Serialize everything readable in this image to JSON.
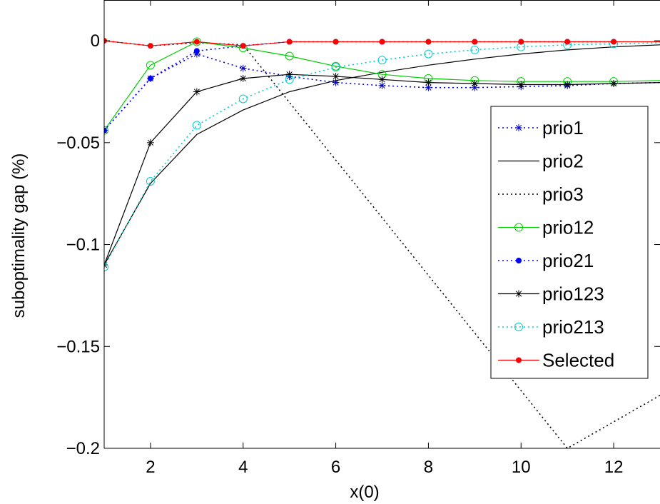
{
  "chart_data": {
    "type": "line",
    "title": "",
    "xlabel": "x(0)",
    "ylabel": "suboptimality gap (%)",
    "xlim": [
      1,
      13
    ],
    "ylim": [
      -0.2,
      0.02
    ],
    "xticks": [
      2,
      4,
      6,
      8,
      10,
      12
    ],
    "yticks": [
      0,
      -0.05,
      -0.1,
      -0.15,
      -0.2
    ],
    "xtick_labels": [
      "2",
      "4",
      "6",
      "8",
      "10",
      "12"
    ],
    "ytick_labels": [
      "0",
      "−0.05",
      "−0.1",
      "−0.15",
      "−0.2"
    ],
    "grid": false,
    "legend_position": "right",
    "series": [
      {
        "name": "prio1",
        "color": "#0000cc",
        "line_style": "dotted",
        "marker": "star",
        "x": [
          1,
          2,
          3,
          4,
          5,
          6,
          7,
          8,
          9,
          10,
          11,
          12,
          13
        ],
        "y": [
          -0.044,
          -0.0185,
          -0.0065,
          -0.0135,
          -0.0175,
          -0.0205,
          -0.022,
          -0.023,
          -0.023,
          -0.0225,
          -0.022,
          -0.021,
          -0.0205
        ]
      },
      {
        "name": "prio2",
        "color": "#000000",
        "line_style": "solid",
        "marker": "none",
        "x": [
          1,
          2,
          3,
          4,
          5,
          6,
          7,
          8,
          9,
          10,
          11,
          12,
          13
        ],
        "y": [
          -0.11,
          -0.07,
          -0.046,
          -0.034,
          -0.025,
          -0.0195,
          -0.0155,
          -0.012,
          -0.009,
          -0.0065,
          -0.0045,
          -0.003,
          -0.002
        ]
      },
      {
        "name": "prio3",
        "color": "#000000",
        "line_style": "dotted",
        "marker": "none",
        "x": [
          1,
          2,
          3,
          4,
          11,
          13
        ],
        "y": [
          0,
          -0.0025,
          -0.001,
          -0.002,
          -0.2,
          -0.174
        ]
      },
      {
        "name": "prio12",
        "color": "#00cc00",
        "line_style": "solid",
        "marker": "circle-open",
        "x": [
          1,
          2,
          3,
          4,
          5,
          6,
          7,
          8,
          9,
          10,
          11,
          12,
          13
        ],
        "y": [
          -0.044,
          -0.012,
          -0.0005,
          -0.0035,
          -0.0075,
          -0.0125,
          -0.0165,
          -0.0185,
          -0.0195,
          -0.02,
          -0.02,
          -0.02,
          -0.0195
        ]
      },
      {
        "name": "prio21",
        "color": "#0000ff",
        "line_style": "dotted",
        "marker": "dot",
        "x": [
          1,
          2,
          3,
          4,
          5,
          6,
          7,
          8,
          9,
          10,
          11,
          12
        ],
        "y": [
          -0.044,
          -0.0185,
          -0.005,
          -0.0025,
          -0.0005,
          -0.0005,
          -0.0005,
          -0.0005,
          -0.0005,
          -0.0005,
          -0.0005,
          -0.0005
        ]
      },
      {
        "name": "prio123",
        "color": "#000000",
        "line_style": "solid",
        "marker": "star",
        "x": [
          1,
          2,
          3,
          4,
          5,
          6,
          7,
          8,
          9,
          10,
          11,
          12,
          13
        ],
        "y": [
          -0.11,
          -0.05,
          -0.025,
          -0.0185,
          -0.0165,
          -0.0175,
          -0.019,
          -0.0205,
          -0.021,
          -0.0215,
          -0.0215,
          -0.021,
          -0.0205
        ]
      },
      {
        "name": "prio213",
        "color": "#00cccc",
        "line_style": "dotted",
        "marker": "circle-open",
        "x": [
          1,
          2,
          3,
          4,
          5,
          6,
          7,
          8,
          9,
          10,
          11,
          12,
          13
        ],
        "y": [
          -0.111,
          -0.069,
          -0.0415,
          -0.0285,
          -0.019,
          -0.013,
          -0.0095,
          -0.0065,
          -0.0045,
          -0.003,
          -0.002,
          -0.0015,
          -0.001
        ]
      },
      {
        "name": "Selected",
        "color": "#ff0000",
        "line_style": "solid",
        "marker": "dot",
        "x": [
          1,
          2,
          3,
          4,
          5,
          6,
          7,
          8,
          9,
          10,
          11,
          12,
          13
        ],
        "y": [
          0,
          -0.0025,
          -0.0005,
          -0.0025,
          -0.0005,
          -0.0005,
          -0.0005,
          -0.0005,
          -0.0005,
          -0.0005,
          -0.0005,
          -0.0005,
          -0.0005
        ]
      }
    ]
  }
}
